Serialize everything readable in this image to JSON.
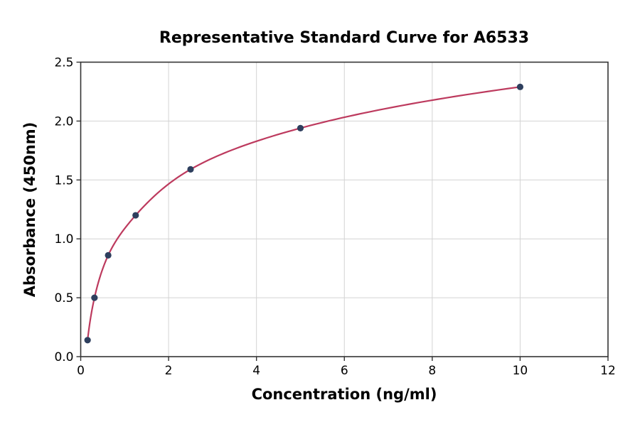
{
  "chart_data": {
    "type": "scatter",
    "title": "Representative Standard Curve for A6533",
    "xlabel": "Concentration (ng/ml)",
    "ylabel": "Absorbance (450nm)",
    "points": [
      {
        "x": 0.156,
        "y": 0.14
      },
      {
        "x": 0.313,
        "y": 0.5
      },
      {
        "x": 0.625,
        "y": 0.86
      },
      {
        "x": 1.25,
        "y": 1.2
      },
      {
        "x": 2.5,
        "y": 1.59
      },
      {
        "x": 5,
        "y": 1.94
      },
      {
        "x": 10,
        "y": 2.29
      }
    ],
    "curve": "smooth fit through standard points",
    "xlim": [
      0,
      12
    ],
    "ylim": [
      0,
      2.5
    ],
    "x_tick_labels": [
      "0",
      "2",
      "4",
      "6",
      "8",
      "10",
      "12"
    ],
    "y_tick_labels": [
      "0.0",
      "0.5",
      "1.0",
      "1.5",
      "2.0",
      "2.5"
    ],
    "grid": true,
    "legend": false,
    "colors": {
      "line": "#bd3a5e",
      "marker": "#2e3f5e",
      "grid": "#d3d3d3",
      "spine": "#333333",
      "text": "#000000"
    }
  }
}
